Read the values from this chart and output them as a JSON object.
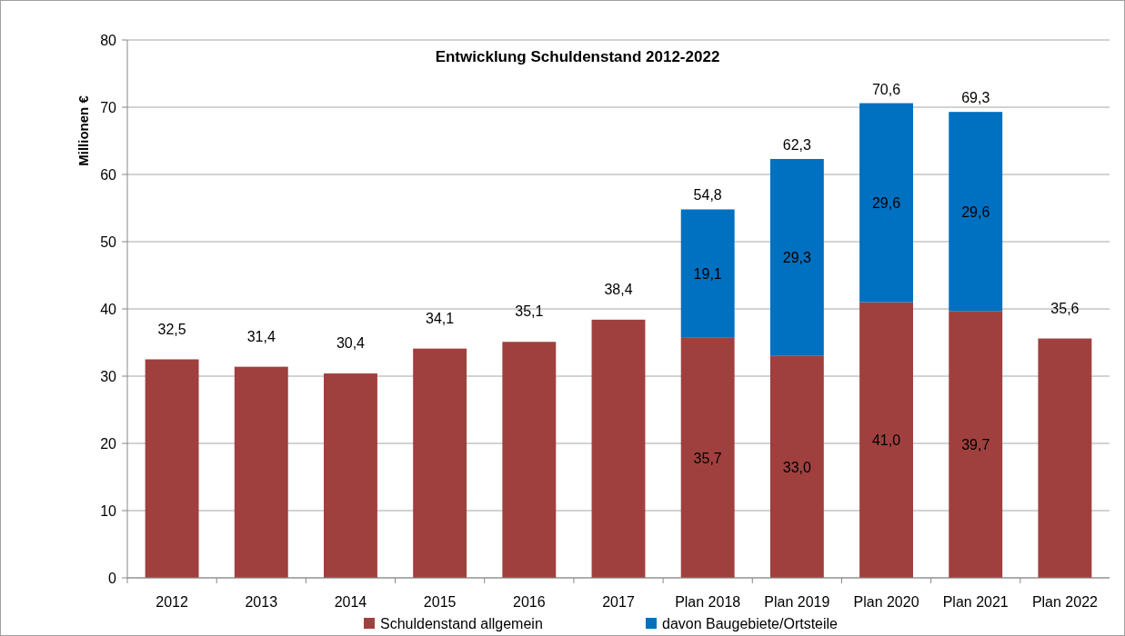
{
  "chart_data": {
    "type": "bar",
    "title": "Entwicklung Schuldenstand 2012-2022",
    "ylabel": "Millionen €",
    "stacked": true,
    "categories": [
      "2012",
      "2013",
      "2014",
      "2015",
      "2016",
      "2017",
      "Plan 2018",
      "Plan 2019",
      "Plan 2020",
      "Plan 2021",
      "Plan 2022"
    ],
    "series": [
      {
        "name": "Schuldenstand allgemein",
        "color": "#a0403e",
        "values": [
          32.5,
          31.4,
          30.4,
          34.1,
          35.1,
          38.4,
          35.7,
          33.0,
          41.0,
          39.7,
          35.6
        ],
        "value_labels": [
          "32,5",
          "31,4",
          "30,4",
          "34,1",
          "35,1",
          "38,4",
          "35,7",
          "33,0",
          "41,0",
          "39,7",
          "35,6"
        ]
      },
      {
        "name": "davon Baugebiete/Ortsteile",
        "color": "#0070c0",
        "values": [
          null,
          null,
          null,
          null,
          null,
          null,
          19.1,
          29.3,
          29.6,
          29.6,
          null
        ],
        "value_labels": [
          null,
          null,
          null,
          null,
          null,
          null,
          "19,1",
          "29,3",
          "29,6",
          "29,6",
          null
        ]
      }
    ],
    "totals": [
      null,
      null,
      null,
      null,
      null,
      null,
      "54,8",
      "62,3",
      "70,6",
      "69,3",
      null
    ],
    "ylim": [
      0,
      80
    ],
    "yticks": [
      0,
      10,
      20,
      30,
      40,
      50,
      60,
      70,
      80
    ],
    "grid": "y",
    "legend": "bottom"
  }
}
